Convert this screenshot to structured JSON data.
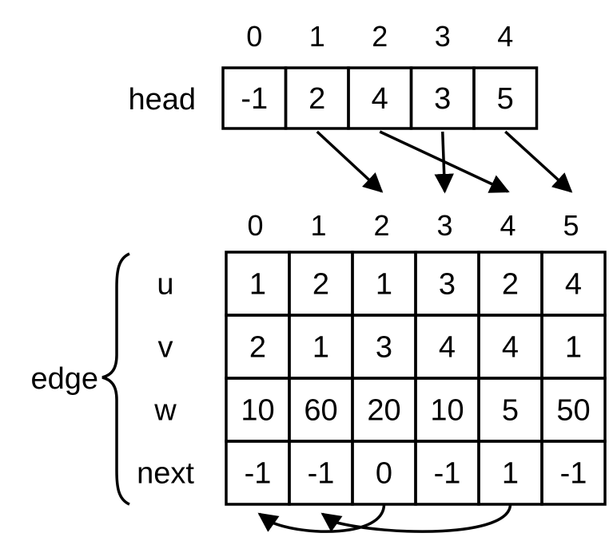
{
  "head": {
    "label": "head",
    "indices": [
      "0",
      "1",
      "2",
      "3",
      "4"
    ],
    "values": [
      "-1",
      "2",
      "4",
      "3",
      "5"
    ]
  },
  "edge": {
    "label": "edge",
    "indices": [
      "0",
      "1",
      "2",
      "3",
      "4",
      "5"
    ],
    "rows": [
      {
        "label": "u",
        "values": [
          "1",
          "2",
          "1",
          "3",
          "2",
          "4"
        ]
      },
      {
        "label": "v",
        "values": [
          "2",
          "1",
          "3",
          "4",
          "4",
          "1"
        ]
      },
      {
        "label": "w",
        "values": [
          "10",
          "60",
          "20",
          "10",
          "5",
          "50"
        ]
      },
      {
        "label": "next",
        "values": [
          "-1",
          "-1",
          "0",
          "-1",
          "1",
          "-1"
        ]
      }
    ]
  },
  "head_arrows": [
    {
      "from_head_index": 1,
      "to_edge_index": 2
    },
    {
      "from_head_index": 2,
      "to_edge_index": 4
    },
    {
      "from_head_index": 3,
      "to_edge_index": 3
    },
    {
      "from_head_index": 4,
      "to_edge_index": 5
    }
  ],
  "next_arrows": [
    {
      "from_edge_index": 2,
      "to_edge_index": 0
    },
    {
      "from_edge_index": 4,
      "to_edge_index": 1
    }
  ],
  "colors": {
    "stroke": "#000000",
    "background": "#ffffff"
  }
}
